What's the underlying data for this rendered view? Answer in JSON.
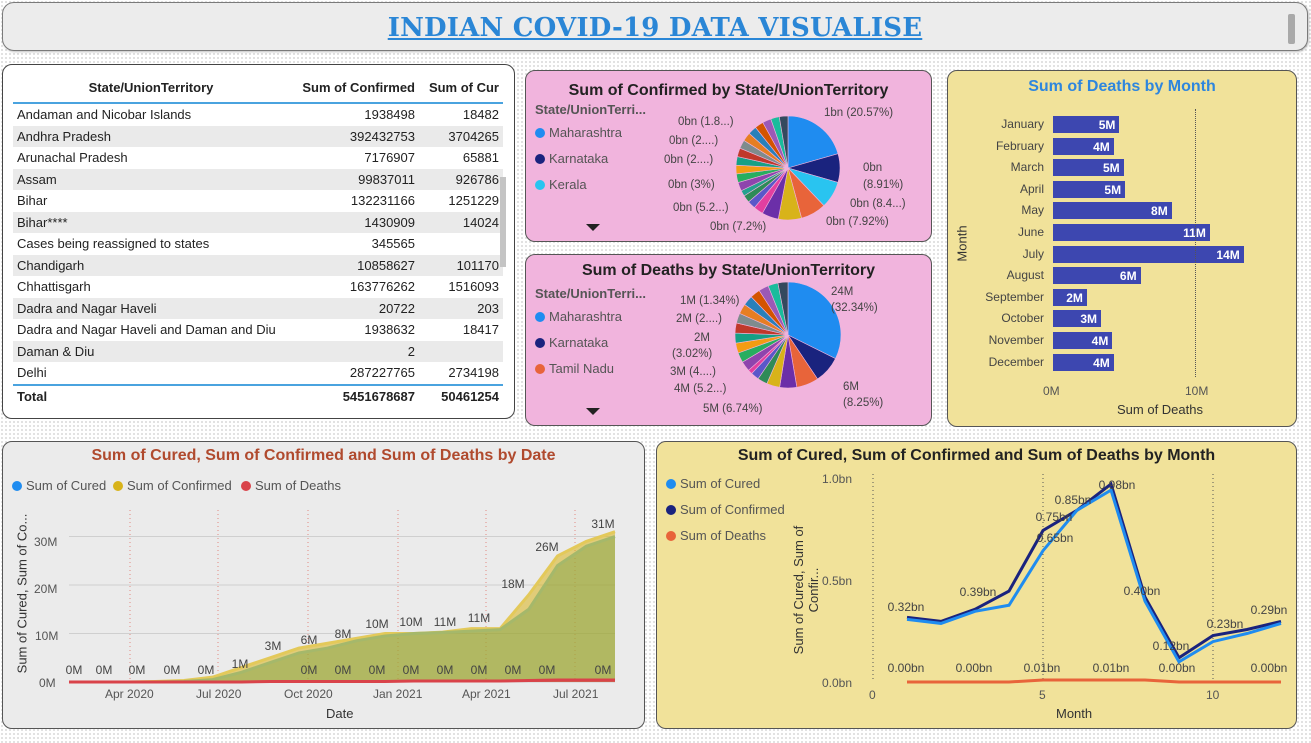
{
  "header": {
    "title": "INDIAN COVID-19 DATA VISUALISE"
  },
  "table": {
    "columns": [
      "State/UnionTerritory",
      "Sum of Confirmed",
      "Sum of Cur"
    ],
    "rows": [
      {
        "state": "Andaman and Nicobar Islands",
        "confirmed": "1938498",
        "cured": "18482"
      },
      {
        "state": "Andhra Pradesh",
        "confirmed": "392432753",
        "cured": "3704265"
      },
      {
        "state": "Arunachal Pradesh",
        "confirmed": "7176907",
        "cured": "65881"
      },
      {
        "state": "Assam",
        "confirmed": "99837011",
        "cured": "926786"
      },
      {
        "state": "Bihar",
        "confirmed": "132231166",
        "cured": "1251229"
      },
      {
        "state": "Bihar****",
        "confirmed": "1430909",
        "cured": "14024"
      },
      {
        "state": "Cases being reassigned to states",
        "confirmed": "345565",
        "cured": ""
      },
      {
        "state": "Chandigarh",
        "confirmed": "10858627",
        "cured": "101170"
      },
      {
        "state": "Chhattisgarh",
        "confirmed": "163776262",
        "cured": "1516093"
      },
      {
        "state": "Dadra and Nagar Haveli",
        "confirmed": "20722",
        "cured": "203"
      },
      {
        "state": "Dadra and Nagar Haveli and Daman and Diu",
        "confirmed": "1938632",
        "cured": "18417"
      },
      {
        "state": "Daman & Diu",
        "confirmed": "2",
        "cured": ""
      },
      {
        "state": "Delhi",
        "confirmed": "287227765",
        "cured": "2734198"
      }
    ],
    "total": {
      "label": "Total",
      "confirmed": "5451678687",
      "cured": "50461254"
    }
  },
  "pie_confirmed": {
    "title": "Sum of Confirmed by State/UnionTerritory",
    "legend_title": "State/UnionTerri...",
    "legend": [
      {
        "name": "Maharashtra",
        "color": "#1f8cf0"
      },
      {
        "name": "Karnataka",
        "color": "#1a237e"
      },
      {
        "name": "Kerala",
        "color": "#29c4f0"
      }
    ],
    "labels": [
      "1bn (20.57%)",
      "0bn (8.91%)",
      "0bn (8.4...)",
      "0bn (7.92%)",
      "0bn (7.2%)",
      "0bn (5.2...)",
      "0bn (3%)",
      "0bn (2....)",
      "0bn (2....)",
      "0bn (1.8...)"
    ],
    "label_split": [
      "0bn",
      "(8.91%)"
    ]
  },
  "pie_deaths": {
    "title": "Sum of Deaths by State/UnionTerritory",
    "legend_title": "State/UnionTerri...",
    "legend": [
      {
        "name": "Maharashtra",
        "color": "#1f8cf0"
      },
      {
        "name": "Karnataka",
        "color": "#1a237e"
      },
      {
        "name": "Tamil Nadu",
        "color": "#e8643a"
      }
    ],
    "labels": [
      "24M",
      "(32.34%)",
      "6M",
      "(8.25%)",
      "5M (6.74%)",
      "4M (5.2...)",
      "3M (4....)",
      "2M",
      "(3.02%)",
      "2M (2....)",
      "1M (1.34%)"
    ]
  },
  "deaths_by_month": {
    "title": "Sum of Deaths by Month",
    "ylabel": "Month",
    "xlabel": "Sum of Deaths",
    "ticks": [
      "0M",
      "10M"
    ]
  },
  "area_chart": {
    "title": "Sum of Cured, Sum of Confirmed and Sum of Deaths by Date",
    "legend": [
      {
        "name": "Sum of Cured",
        "color": "#1f8cf0"
      },
      {
        "name": "Sum of Confirmed",
        "color": "#d8b31a"
      },
      {
        "name": "Sum of Deaths",
        "color": "#d9434a"
      }
    ],
    "ylabel": "Sum of Cured, Sum of Co...",
    "xlabel": "Date",
    "yticks": [
      "0M",
      "10M",
      "20M",
      "30M"
    ],
    "xticks": [
      "Apr 2020",
      "Jul 2020",
      "Oct 2020",
      "Jan 2021",
      "Apr 2021",
      "Jul 2021"
    ]
  },
  "line_chart": {
    "title": "Sum of Cured, Sum of Confirmed and Sum of Deaths by Month",
    "legend": [
      {
        "name": "Sum of Cured",
        "color": "#1f8cf0"
      },
      {
        "name": "Sum of Confirmed",
        "color": "#1a237e"
      },
      {
        "name": "Sum of Deaths",
        "color": "#e8643a"
      }
    ],
    "ylabel": "Sum of Cured, Sum of Confir...",
    "xlabel": "Month",
    "yticks": [
      "0.0bn",
      "0.5bn",
      "1.0bn"
    ],
    "xticks": [
      "0",
      "5",
      "10"
    ]
  },
  "chart_data": [
    {
      "type": "pie",
      "title": "Sum of Confirmed by State/UnionTerritory",
      "slices": [
        {
          "label": "Maharashtra",
          "percent": 20.57,
          "color": "#1f8cf0"
        },
        {
          "label": "Karnataka",
          "percent": 8.91,
          "color": "#1a237e"
        },
        {
          "label": "Kerala",
          "percent": 8.4,
          "color": "#29c4f0"
        },
        {
          "label": "",
          "percent": 7.92,
          "color": "#e8643a"
        },
        {
          "label": "",
          "percent": 7.2,
          "color": "#d8b31a"
        },
        {
          "label": "",
          "percent": 5.2,
          "color": "#6b2fa8"
        },
        {
          "label": "",
          "percent": 3.0,
          "color": "#e33fa0"
        },
        {
          "label": "",
          "percent": 2.5,
          "color": "#5a57c9"
        },
        {
          "label": "",
          "percent": 2.3,
          "color": "#2e8b57"
        },
        {
          "label": "",
          "percent": 1.8,
          "color": "#25a18e"
        },
        {
          "label": "",
          "percent": 32.2,
          "color": "#mix"
        }
      ]
    },
    {
      "type": "pie",
      "title": "Sum of Deaths by State/UnionTerritory",
      "slices": [
        {
          "label": "Maharashtra",
          "percent": 32.34,
          "color": "#1f8cf0"
        },
        {
          "label": "Karnataka",
          "percent": 8.25,
          "color": "#1a237e"
        },
        {
          "label": "Tamil Nadu",
          "percent": 6.74,
          "color": "#e8643a"
        },
        {
          "label": "",
          "percent": 5.2,
          "color": "#6b2fa8"
        },
        {
          "label": "",
          "percent": 4.0,
          "color": "#d8b31a"
        },
        {
          "label": "",
          "percent": 3.02,
          "color": "#2e8b57"
        },
        {
          "label": "",
          "percent": 2.5,
          "color": "#5a57c9"
        },
        {
          "label": "",
          "percent": 1.34,
          "color": "#e33fa0"
        },
        {
          "label": "",
          "percent": 36.61,
          "color": "#mix"
        }
      ]
    },
    {
      "type": "bar",
      "title": "Sum of Deaths by Month",
      "orientation": "horizontal",
      "categories": [
        "January",
        "February",
        "March",
        "April",
        "May",
        "June",
        "July",
        "August",
        "September",
        "October",
        "November",
        "December"
      ],
      "values": [
        4.7,
        4.3,
        5.0,
        5.1,
        8.4,
        11.1,
        13.5,
        6.2,
        2.4,
        3.4,
        4.2,
        4.3
      ],
      "value_labels": [
        "5M",
        "4M",
        "5M",
        "5M",
        "8M",
        "11M",
        "14M",
        "6M",
        "2M",
        "3M",
        "4M",
        "4M"
      ],
      "unit": "M",
      "xlim": [
        0,
        13.8
      ],
      "ylabel": "Month",
      "xlabel": "Sum of Deaths"
    },
    {
      "type": "area",
      "title": "Sum of Cured, Sum of Confirmed and Sum of Deaths by Date",
      "x": [
        "2020-01",
        "2020-02",
        "2020-03",
        "2020-04",
        "2020-05",
        "2020-06",
        "2020-07",
        "2020-08",
        "2020-09",
        "2020-10",
        "2020-11",
        "2020-12",
        "2021-01",
        "2021-02",
        "2021-03",
        "2021-04",
        "2021-05",
        "2021-06",
        "2021-07",
        "2021-08"
      ],
      "series": [
        {
          "name": "Sum of Confirmed",
          "values": [
            0,
            0,
            0,
            0.1,
            0.3,
            1,
            3,
            5,
            7,
            8,
            9,
            10,
            10,
            10.3,
            11,
            11,
            18,
            26,
            29,
            31
          ]
        },
        {
          "name": "Sum of Cured",
          "values": [
            0,
            0,
            0,
            0,
            0.1,
            0.5,
            2,
            4,
            6,
            7,
            8.5,
            9.5,
            10,
            10.2,
            10.5,
            10.8,
            15,
            24,
            28,
            30
          ]
        },
        {
          "name": "Sum of Deaths",
          "values": [
            0,
            0,
            0,
            0,
            0,
            0,
            0,
            0.1,
            0.1,
            0.1,
            0.1,
            0.1,
            0.2,
            0.2,
            0.2,
            0.2,
            0.3,
            0.4,
            0.4,
            0.4
          ]
        }
      ],
      "point_labels": [
        "0M",
        "0M",
        "0M",
        "0M",
        "0M",
        "1M",
        "3M",
        "6M",
        "8M",
        "10M",
        "10M",
        "11M",
        "11M",
        "18M",
        "26M",
        "31M"
      ],
      "ylim": [
        0,
        33
      ],
      "ylabel": "Sum of Cured, Sum of Co...",
      "xlabel": "Date"
    },
    {
      "type": "line",
      "title": "Sum of Cured, Sum of Confirmed and Sum of Deaths by Month",
      "x": [
        1,
        2,
        3,
        4,
        5,
        6,
        7,
        8,
        9,
        10,
        11,
        12
      ],
      "series": [
        {
          "name": "Sum of Cured",
          "values": [
            0.31,
            0.29,
            0.35,
            0.38,
            0.65,
            0.85,
            0.95,
            0.4,
            0.1,
            0.2,
            0.24,
            0.29
          ]
        },
        {
          "name": "Sum of Confirmed",
          "values": [
            0.32,
            0.3,
            0.36,
            0.45,
            0.75,
            0.85,
            0.98,
            0.42,
            0.12,
            0.23,
            0.26,
            0.3
          ]
        },
        {
          "name": "Sum of Deaths",
          "values": [
            0.0,
            0.0,
            0.0,
            0.0,
            0.01,
            0.01,
            0.01,
            0.01,
            0.0,
            0.0,
            0.0,
            0.0
          ]
        }
      ],
      "point_labels": [
        "0.32bn",
        "0.39bn",
        "0.65bn",
        "0.75bn",
        "0.85bn",
        "0.98bn",
        "0.40bn",
        "0.12bn",
        "0.23bn",
        "0.29bn",
        "0.00bn",
        "0.00bn",
        "0.01bn",
        "0.01bn",
        "0.00bn",
        "0.00bn"
      ],
      "xlim": [
        0,
        12
      ],
      "ylim": [
        0,
        1.0
      ],
      "ylabel": "Sum of Cured, Sum of Confir...",
      "xlabel": "Month"
    }
  ]
}
